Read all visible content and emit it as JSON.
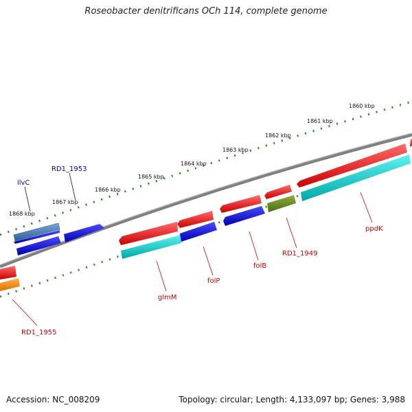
{
  "title": "Roseobacter denitrificans OCh 114, complete genome",
  "footer": {
    "accession": "Accession: NC_008209",
    "topology": "Topology: circular; Length: 4,133,097 bp; Genes: 3,988"
  },
  "kbp_labels": [
    "1860 kbp",
    "1861 kbp",
    "1862 kbp",
    "1863 kbp",
    "1864 kbp",
    "1865 kbp",
    "1866 kbp",
    "1867 kbp",
    "1868 kbp"
  ],
  "gene_labels": {
    "ilvC": "ilvC",
    "RD1_1953": "RD1_1953",
    "glmM": "glmM",
    "folP": "folP",
    "folB": "folB",
    "RD1_1949": "RD1_1949",
    "ppdK": "ppdK",
    "RD1_1955": "RD1_1955"
  },
  "colors": {
    "forward_gene": "#ff0000",
    "reverse_gene": "#0000ff",
    "cds": "#00cccc",
    "rna_feature": "#4b7fbf",
    "other_feature": "#6b8e23",
    "partial_feature": "#ff8c00",
    "backbone": "#808080",
    "ticks": "#228b22"
  }
}
